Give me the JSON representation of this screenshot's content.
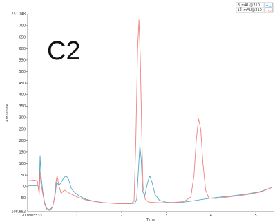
{
  "chart_data": {
    "type": "line",
    "panel_label": "C2",
    "xlabel": "Time",
    "ylabel": "Amplitude",
    "xlim": [
      -0.0985533,
      5.4
    ],
    "ylim": [
      -108.882,
      751.148
    ],
    "y_extremes_labels": {
      "top": "751.148",
      "bottom": "-108.882"
    },
    "x_min_label": "-0.0985533",
    "x_ticks": [
      1,
      2,
      3,
      4,
      5
    ],
    "y_ticks": [
      -50,
      0,
      50,
      100,
      150,
      200,
      250,
      300,
      350,
      400,
      450,
      500,
      550,
      600,
      650,
      700
    ],
    "legend_placement": "top-right",
    "series": [
      {
        "name": "B_mAU@210",
        "color": "#4aa3c7",
        "points": [
          [
            -0.0985533,
            3
          ],
          [
            0.05,
            4
          ],
          [
            0.13,
            5
          ],
          [
            0.16,
            -20
          ],
          [
            0.18,
            135
          ],
          [
            0.2,
            50
          ],
          [
            0.24,
            -20
          ],
          [
            0.28,
            -70
          ],
          [
            0.33,
            -95
          ],
          [
            0.4,
            -100
          ],
          [
            0.46,
            -88
          ],
          [
            0.52,
            -30
          ],
          [
            0.55,
            20
          ],
          [
            0.6,
            5
          ],
          [
            0.64,
            15
          ],
          [
            0.7,
            35
          ],
          [
            0.76,
            48
          ],
          [
            0.82,
            30
          ],
          [
            0.88,
            -10
          ],
          [
            0.95,
            -25
          ],
          [
            1.05,
            -40
          ],
          [
            1.2,
            -55
          ],
          [
            1.35,
            -62
          ],
          [
            1.6,
            -70
          ],
          [
            1.9,
            -73
          ],
          [
            2.2,
            -74
          ],
          [
            2.3,
            -72
          ],
          [
            2.34,
            -55
          ],
          [
            2.38,
            80
          ],
          [
            2.41,
            178
          ],
          [
            2.44,
            120
          ],
          [
            2.47,
            -20
          ],
          [
            2.52,
            -40
          ],
          [
            2.58,
            15
          ],
          [
            2.63,
            47
          ],
          [
            2.68,
            20
          ],
          [
            2.75,
            -35
          ],
          [
            2.85,
            -60
          ],
          [
            3.0,
            -68
          ],
          [
            3.3,
            -70
          ],
          [
            3.6,
            -62
          ],
          [
            4.0,
            -50
          ],
          [
            4.4,
            -42
          ],
          [
            4.8,
            -32
          ],
          [
            5.1,
            -22
          ],
          [
            5.35,
            -5
          ]
        ]
      },
      {
        "name": "12_mAU@210",
        "color": "#f07a7a",
        "points": [
          [
            -0.0985533,
            25
          ],
          [
            0.05,
            28
          ],
          [
            0.12,
            25
          ],
          [
            0.16,
            -35
          ],
          [
            0.18,
            65
          ],
          [
            0.2,
            10
          ],
          [
            0.24,
            -30
          ],
          [
            0.28,
            -75
          ],
          [
            0.33,
            -100
          ],
          [
            0.4,
            -104
          ],
          [
            0.46,
            -90
          ],
          [
            0.5,
            -50
          ],
          [
            0.53,
            15
          ],
          [
            0.56,
            48
          ],
          [
            0.6,
            5
          ],
          [
            0.65,
            -30
          ],
          [
            0.72,
            -15
          ],
          [
            0.8,
            -25
          ],
          [
            0.9,
            -35
          ],
          [
            1.0,
            -45
          ],
          [
            1.2,
            -58
          ],
          [
            1.4,
            -65
          ],
          [
            1.6,
            -70
          ],
          [
            1.9,
            -74
          ],
          [
            2.2,
            -74
          ],
          [
            2.28,
            -65
          ],
          [
            2.32,
            200
          ],
          [
            2.36,
            600
          ],
          [
            2.39,
            725
          ],
          [
            2.42,
            560
          ],
          [
            2.45,
            250
          ],
          [
            2.48,
            0
          ],
          [
            2.53,
            -55
          ],
          [
            2.6,
            -67
          ],
          [
            2.8,
            -70
          ],
          [
            3.1,
            -70
          ],
          [
            3.4,
            -65
          ],
          [
            3.55,
            -45
          ],
          [
            3.62,
            50
          ],
          [
            3.67,
            200
          ],
          [
            3.72,
            295
          ],
          [
            3.77,
            250
          ],
          [
            3.82,
            100
          ],
          [
            3.88,
            -15
          ],
          [
            3.95,
            -50
          ],
          [
            4.1,
            -52
          ],
          [
            4.4,
            -45
          ],
          [
            4.8,
            -35
          ],
          [
            5.1,
            -24
          ],
          [
            5.35,
            -5
          ]
        ]
      }
    ]
  }
}
